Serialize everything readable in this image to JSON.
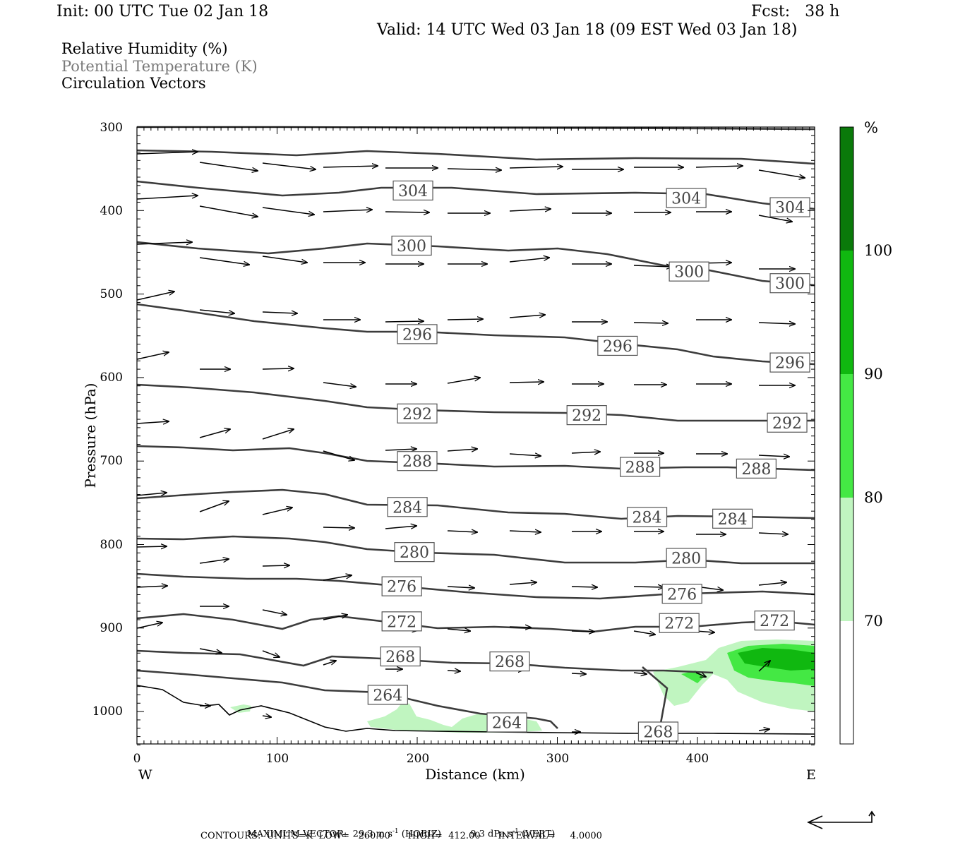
{
  "header": {
    "init": "Init: 00 UTC Tue 02 Jan 18",
    "fcst": "Fcst:   38 h",
    "valid": "Valid: 14 UTC Wed 03 Jan 18 (09 EST Wed 03 Jan 18)"
  },
  "legend": {
    "line1": "Relative Humidity (%)",
    "line2": "Potential Temperature (K)",
    "line3": "Circulation Vectors"
  },
  "footer": {
    "max_vector_label": "MAXIMUM VECTOR:",
    "horiz": "29.3 m s",
    "horiz_sup": "-1",
    "horiz_tag": "(HORIZ)",
    "vert": "9.3 dPa s",
    "vert_sup": "-1",
    "vert_tag": "(VERT)",
    "contours": "CONTOURS:  UNITS=K  LOW=   260.00      HIGH=  412.00      INTERVAL=     4.0000"
  },
  "colors": {
    "contour": "#3c3c3c",
    "rh_70": "#c0f5c0",
    "rh_80": "#44e844",
    "rh_90": "#10b810",
    "rh_100": "#0a7a0a"
  },
  "chart_data": {
    "type": "cross-section",
    "xlabel": "Distance (km)",
    "ylabel": "Pressure (hPa)",
    "xlim": [
      0,
      485
    ],
    "ylim": [
      1040,
      300
    ],
    "x_ticks": [
      0,
      100,
      200,
      300,
      400
    ],
    "y_ticks": [
      300,
      400,
      500,
      600,
      700,
      800,
      900,
      1000
    ],
    "x_end_labels": {
      "left": "W",
      "right": "E"
    },
    "colorbar": {
      "unit": "%",
      "levels": [
        70,
        80,
        90,
        100
      ],
      "colors": [
        "#c0f5c0",
        "#44e844",
        "#10b810",
        "#0a7a0a"
      ]
    },
    "theta_labels": [
      {
        "v": "304",
        "x": 197,
        "p": 376
      },
      {
        "v": "304",
        "x": 392,
        "p": 385
      },
      {
        "v": "304",
        "x": 466,
        "p": 396
      },
      {
        "v": "300",
        "x": 196,
        "p": 442
      },
      {
        "v": "300",
        "x": 394,
        "p": 473
      },
      {
        "v": "300",
        "x": 466,
        "p": 487
      },
      {
        "v": "296",
        "x": 200,
        "p": 548
      },
      {
        "v": "296",
        "x": 343,
        "p": 562
      },
      {
        "v": "296",
        "x": 466,
        "p": 582
      },
      {
        "v": "292",
        "x": 200,
        "p": 643
      },
      {
        "v": "292",
        "x": 321,
        "p": 645
      },
      {
        "v": "292",
        "x": 464,
        "p": 654
      },
      {
        "v": "288",
        "x": 200,
        "p": 700
      },
      {
        "v": "288",
        "x": 359,
        "p": 707
      },
      {
        "v": "288",
        "x": 442,
        "p": 709
      },
      {
        "v": "284",
        "x": 193,
        "p": 755
      },
      {
        "v": "284",
        "x": 364,
        "p": 767
      },
      {
        "v": "284",
        "x": 425,
        "p": 769
      },
      {
        "v": "280",
        "x": 198,
        "p": 809
      },
      {
        "v": "280",
        "x": 392,
        "p": 816
      },
      {
        "v": "276",
        "x": 189,
        "p": 850
      },
      {
        "v": "276",
        "x": 389,
        "p": 859
      },
      {
        "v": "272",
        "x": 189,
        "p": 892
      },
      {
        "v": "272",
        "x": 387,
        "p": 894
      },
      {
        "v": "272",
        "x": 455,
        "p": 891
      },
      {
        "v": "268",
        "x": 188,
        "p": 934
      },
      {
        "v": "268",
        "x": 266,
        "p": 940
      },
      {
        "v": "268",
        "x": 372,
        "p": 1024
      },
      {
        "v": "264",
        "x": 179,
        "p": 980
      },
      {
        "v": "264",
        "x": 264,
        "p": 1013
      }
    ]
  }
}
